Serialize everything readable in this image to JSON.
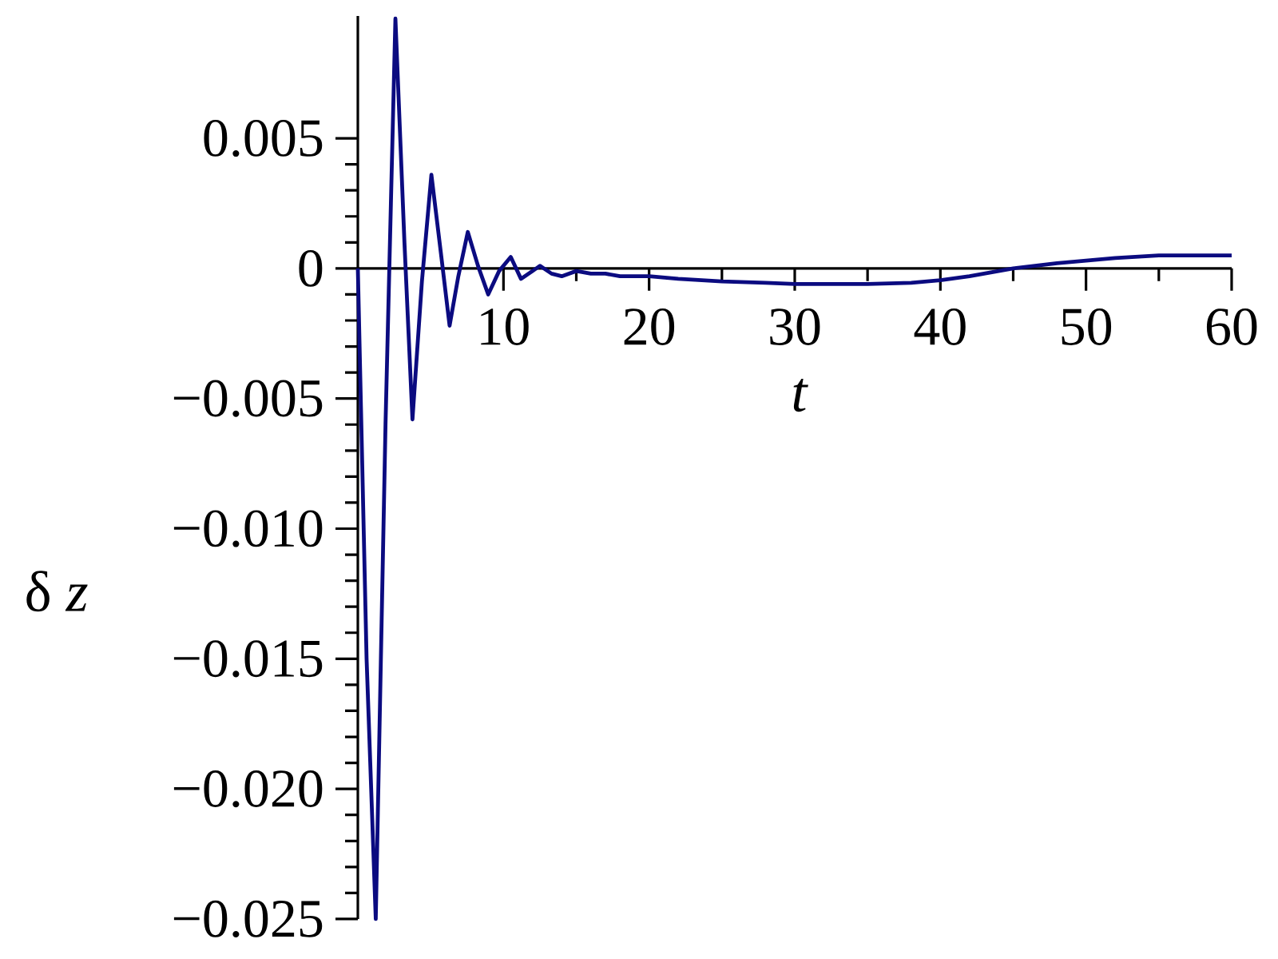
{
  "chart_data": {
    "type": "line",
    "xlabel": "t",
    "ylabel": "δ *z*",
    "color": "#0b0b80",
    "marker": "none",
    "line_style": "solid",
    "grid": false,
    "x": [
      0,
      0.6,
      1.23,
      1.9,
      2.58,
      3.2,
      3.75,
      4.4,
      5.05,
      5.7,
      6.3,
      6.9,
      7.55,
      8.25,
      8.95,
      9.7,
      10.5,
      11.2,
      12.0,
      12.5,
      13.3,
      14,
      15,
      16,
      17,
      18,
      20,
      22,
      25,
      28,
      30,
      32,
      35,
      38,
      40,
      42,
      45,
      48,
      50,
      52,
      55,
      58,
      60
    ],
    "values": [
      0,
      -0.015,
      -0.025,
      -0.006,
      0.0096,
      0.001,
      -0.0058,
      -0.0005,
      0.0036,
      0.0006,
      -0.0022,
      -0.0003,
      0.0014,
      0.0001,
      -0.001,
      -0.0001,
      0.00044,
      -0.0004,
      -0.0001,
      0.0001,
      -0.0002,
      -0.0003,
      -0.0001,
      -0.0002,
      -0.0002,
      -0.0003,
      -0.0003,
      -0.0004,
      -0.0005,
      -0.00055,
      -0.0006,
      -0.0006,
      -0.0006,
      -0.00055,
      -0.00045,
      -0.0003,
      0,
      0.0002,
      0.0003,
      0.0004,
      0.0005,
      0.0005,
      0.0005
    ],
    "xlim": [
      0,
      60
    ],
    "ylim": [
      -0.025,
      0.0097
    ],
    "xticks": [
      10,
      20,
      30,
      40,
      50,
      60
    ],
    "yticks": [
      {
        "value": 0.005,
        "label": "0.005"
      },
      {
        "value": 0,
        "label": "0"
      },
      {
        "value": -0.005,
        "label": "−0.005"
      },
      {
        "value": -0.01,
        "label": "−0.010"
      },
      {
        "value": -0.015,
        "label": "−0.015"
      },
      {
        "value": -0.02,
        "label": "−0.020"
      },
      {
        "value": -0.025,
        "label": "−0.025"
      }
    ]
  }
}
